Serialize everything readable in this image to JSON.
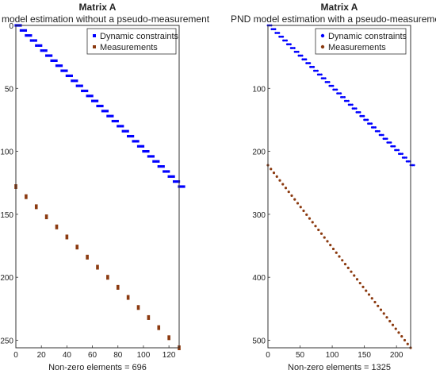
{
  "chart_data": [
    {
      "type": "scatter",
      "subtype": "matrix-sparsity-pattern",
      "title": "Matrix A",
      "subtitle": "CV model estimation without a pseudo-measurement",
      "xlabel": "Non-zero elements = 696",
      "ylabel": "",
      "xlim": [
        0,
        128
      ],
      "ylim": [
        256,
        0
      ],
      "y_reversed": true,
      "x_ticks": [
        "0",
        "20",
        "40",
        "60",
        "80",
        "100",
        "120"
      ],
      "y_ticks": [
        "0",
        "50",
        "100",
        "150",
        "200",
        "250"
      ],
      "grid": false,
      "legend_position": "top-right",
      "series": [
        {
          "name": "Dynamic constraints",
          "color": "#0000ff",
          "pattern": "diagonal band",
          "rows": [
            0,
            128
          ],
          "cols": [
            0,
            128
          ]
        },
        {
          "name": "Measurements",
          "color": "#8b3a10",
          "pattern": "diagonal",
          "rows": [
            128,
            256
          ],
          "cols": [
            0,
            128
          ]
        }
      ]
    },
    {
      "type": "scatter",
      "subtype": "matrix-sparsity-pattern",
      "title": "Matrix A",
      "subtitle": "PND model estimation with a pseudo-measurement",
      "xlabel": "Non-zero elements = 1325",
      "ylabel": "",
      "xlim": [
        0,
        222
      ],
      "ylim": [
        512,
        0
      ],
      "y_reversed": true,
      "x_ticks": [
        "0",
        "50",
        "100",
        "150",
        "200"
      ],
      "y_ticks": [
        "100",
        "200",
        "300",
        "400",
        "500"
      ],
      "grid": false,
      "legend_position": "top-right",
      "series": [
        {
          "name": "Dynamic constraints",
          "color": "#0000ff",
          "pattern": "diagonal band",
          "rows": [
            0,
            222
          ],
          "cols": [
            0,
            222
          ]
        },
        {
          "name": "Measurements",
          "color": "#8b3a10",
          "pattern": "diagonal",
          "rows": [
            222,
            512
          ],
          "cols": [
            0,
            222
          ]
        }
      ]
    }
  ]
}
